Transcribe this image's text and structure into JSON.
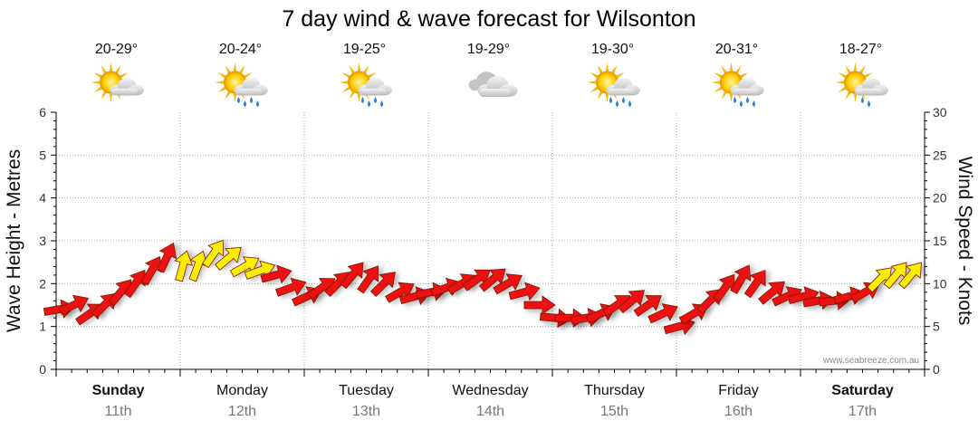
{
  "chart_data": {
    "type": "line",
    "title": "7 day wind & wave forecast for Wilsonton",
    "y_left_label": "Wave Height - Metres",
    "y_right_label": "Wind Speed - Knots",
    "y_left_range": [
      0,
      6
    ],
    "y_left_ticks": [
      "0",
      "1",
      "2",
      "3",
      "4",
      "5",
      "6"
    ],
    "y_right_range": [
      0,
      30
    ],
    "y_right_ticks": [
      "0",
      "5",
      "10",
      "15",
      "20",
      "25",
      "30"
    ],
    "grid": true,
    "days": [
      {
        "name": "Sunday",
        "date": "11th",
        "bold": true,
        "temp": "20-29°",
        "icon": "sun-cloud-icon"
      },
      {
        "name": "Monday",
        "date": "12th",
        "bold": false,
        "temp": "20-24°",
        "icon": "sun-cloud-rain-icon"
      },
      {
        "name": "Tuesday",
        "date": "13th",
        "bold": false,
        "temp": "19-25°",
        "icon": "sun-cloud-rain-icon"
      },
      {
        "name": "Wednesday",
        "date": "14th",
        "bold": false,
        "temp": "19-29°",
        "icon": "cloud-icon"
      },
      {
        "name": "Thursday",
        "date": "15th",
        "bold": false,
        "temp": "19-30°",
        "icon": "sun-cloud-rain-icon"
      },
      {
        "name": "Friday",
        "date": "16th",
        "bold": false,
        "temp": "20-31°",
        "icon": "sun-cloud-rain-icon"
      },
      {
        "name": "Saturday",
        "date": "17th",
        "bold": true,
        "temp": "18-27°",
        "icon": "sun-cloud-light-rain-icon"
      }
    ],
    "wind_series": {
      "name": "Wind",
      "unit": "knots",
      "day_offset": [
        0,
        0.12,
        0.25,
        0.37,
        0.5,
        0.62,
        0.75,
        0.87,
        1,
        1.12,
        1.25,
        1.37,
        1.5,
        1.62,
        1.75,
        1.87,
        2,
        2.12,
        2.25,
        2.37,
        2.5,
        2.62,
        2.75,
        2.87,
        3,
        3.12,
        3.25,
        3.37,
        3.5,
        3.62,
        3.75,
        3.87,
        4,
        4.12,
        4.25,
        4.37,
        4.5,
        4.62,
        4.75,
        4.87,
        5,
        5.12,
        5.25,
        5.37,
        5.5,
        5.62,
        5.75,
        5.87,
        6,
        6.12,
        6.25,
        6.37,
        6.5,
        6.62,
        6.75,
        6.87
      ],
      "speed_knots": [
        7,
        7.5,
        6.5,
        7.5,
        9,
        10,
        11.5,
        13,
        12,
        12,
        13.5,
        13,
        12,
        11.5,
        11,
        9.5,
        8.5,
        9.5,
        10,
        11,
        10.5,
        10,
        9,
        8.5,
        9,
        9.5,
        10,
        10.5,
        10.5,
        10,
        9,
        7.5,
        6,
        6,
        6,
        6.5,
        7.5,
        8,
        7.5,
        6.5,
        5,
        6.5,
        8,
        9.5,
        10.5,
        10,
        9,
        8.5,
        8.5,
        8,
        8,
        8.5,
        9,
        10.5,
        11,
        11
      ],
      "direction_deg": [
        260,
        245,
        235,
        225,
        220,
        215,
        210,
        205,
        195,
        200,
        215,
        230,
        240,
        250,
        255,
        250,
        245,
        235,
        225,
        220,
        215,
        225,
        240,
        255,
        260,
        250,
        240,
        235,
        230,
        240,
        255,
        270,
        275,
        270,
        260,
        245,
        235,
        230,
        235,
        245,
        255,
        240,
        225,
        215,
        210,
        215,
        230,
        245,
        255,
        260,
        265,
        255,
        240,
        225,
        220,
        220
      ],
      "gust_highlight": [
        false,
        false,
        false,
        false,
        false,
        false,
        false,
        false,
        true,
        true,
        true,
        true,
        true,
        true,
        false,
        false,
        false,
        false,
        false,
        false,
        false,
        false,
        false,
        false,
        false,
        false,
        false,
        false,
        false,
        false,
        false,
        false,
        false,
        false,
        false,
        false,
        false,
        false,
        false,
        false,
        false,
        false,
        false,
        false,
        false,
        false,
        false,
        false,
        false,
        false,
        false,
        false,
        false,
        true,
        true,
        true
      ]
    },
    "colors": {
      "wind_normal": "#ee1111",
      "wind_strong": "#ffee00",
      "arrow_outline": "#7a1a00",
      "grid": "#aaaaaa",
      "axis": "#000000"
    },
    "credit": "www.seabreeze.com.au"
  }
}
